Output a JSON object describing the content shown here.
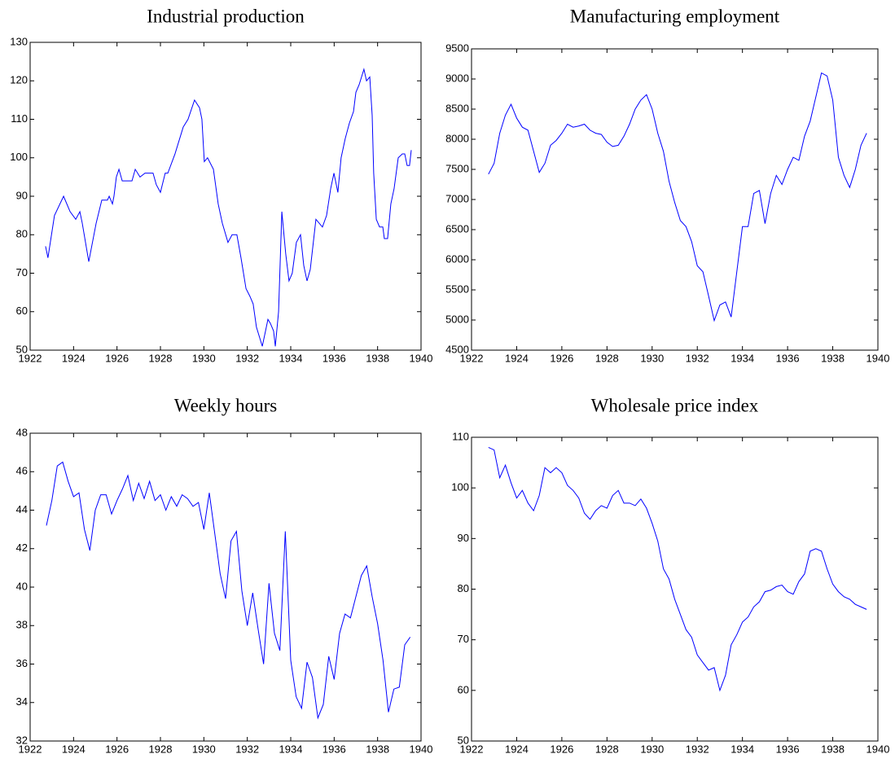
{
  "chart_data": [
    {
      "type": "line",
      "title": "Industrial production",
      "x": [
        1922.71,
        1922.82,
        1923.12,
        1923.54,
        1923.84,
        1924.1,
        1924.29,
        1924.4,
        1924.7,
        1925.04,
        1925.3,
        1925.56,
        1925.64,
        1925.79,
        1925.86,
        1925.97,
        1926.09,
        1926.24,
        1926.69,
        1926.84,
        1927.06,
        1927.29,
        1927.66,
        1927.81,
        1928.0,
        1928.22,
        1928.34,
        1928.67,
        1929.05,
        1929.27,
        1929.57,
        1929.8,
        1929.91,
        1930.02,
        1930.17,
        1930.44,
        1930.66,
        1930.85,
        1931.11,
        1931.3,
        1931.52,
        1931.71,
        1931.94,
        1932.12,
        1932.27,
        1932.42,
        1932.69,
        1932.84,
        1932.95,
        1933.06,
        1933.21,
        1933.29,
        1933.44,
        1933.59,
        1933.77,
        1933.92,
        1934.07,
        1934.26,
        1934.45,
        1934.6,
        1934.75,
        1934.9,
        1935.16,
        1935.46,
        1935.65,
        1935.84,
        1935.99,
        1936.17,
        1936.32,
        1936.51,
        1936.7,
        1936.89,
        1937.0,
        1937.15,
        1937.37,
        1937.49,
        1937.64,
        1937.75,
        1937.82,
        1937.94,
        1938.09,
        1938.24,
        1938.31,
        1938.46,
        1938.61,
        1938.76,
        1938.95,
        1939.14,
        1939.25,
        1939.36,
        1939.47,
        1939.55
      ],
      "series": [
        {
          "color": "#0000ff",
          "values": [
            77,
            74,
            85,
            90,
            86,
            84,
            86,
            83,
            73,
            83,
            89,
            89,
            90,
            88,
            90,
            95,
            97,
            94,
            94,
            97,
            95,
            96,
            96,
            93,
            91,
            96,
            96,
            101,
            108,
            110,
            115,
            113,
            110,
            99,
            100,
            97,
            88,
            83,
            78,
            80,
            80,
            74,
            66,
            64,
            62,
            56,
            51,
            55,
            58,
            57,
            55,
            51,
            60,
            86,
            75,
            68,
            70,
            78,
            80,
            72,
            68,
            71,
            84,
            82,
            85,
            92,
            96,
            91,
            100,
            105,
            109,
            112,
            117,
            119,
            123,
            120,
            121,
            111,
            96,
            84,
            82,
            82,
            79,
            79,
            88,
            92,
            100,
            101,
            101,
            98,
            98,
            102
          ]
        }
      ],
      "xlim": [
        1922,
        1940
      ],
      "xticks": [
        1922,
        1924,
        1926,
        1928,
        1930,
        1932,
        1934,
        1936,
        1938,
        1940
      ],
      "ylim": [
        50,
        130
      ],
      "yticks": [
        50,
        60,
        70,
        80,
        90,
        100,
        110,
        120,
        130
      ]
    },
    {
      "type": "line",
      "title": "Manufacturing employment",
      "x": [
        1922.75,
        1923,
        1923.25,
        1923.5,
        1923.75,
        1924,
        1924.25,
        1924.5,
        1924.75,
        1925,
        1925.25,
        1925.5,
        1925.75,
        1926,
        1926.25,
        1926.5,
        1926.75,
        1927,
        1927.25,
        1927.5,
        1927.75,
        1928,
        1928.25,
        1928.5,
        1928.75,
        1929,
        1929.25,
        1929.5,
        1929.75,
        1930,
        1930.25,
        1930.5,
        1930.75,
        1931,
        1931.25,
        1931.5,
        1931.75,
        1932,
        1932.25,
        1932.5,
        1932.75,
        1933,
        1933.25,
        1933.5,
        1933.75,
        1934,
        1934.25,
        1934.5,
        1934.75,
        1935,
        1935.25,
        1935.5,
        1935.75,
        1936,
        1936.25,
        1936.5,
        1936.75,
        1937,
        1937.25,
        1937.5,
        1937.75,
        1938,
        1938.25,
        1938.5,
        1938.75,
        1939,
        1939.25,
        1939.5
      ],
      "series": [
        {
          "color": "#0000ff",
          "values": [
            7420,
            7600,
            8100,
            8400,
            8580,
            8350,
            8200,
            8150,
            7800,
            7450,
            7600,
            7900,
            7980,
            8100,
            8250,
            8200,
            8220,
            8250,
            8150,
            8100,
            8080,
            7950,
            7880,
            7900,
            8050,
            8250,
            8500,
            8650,
            8740,
            8500,
            8100,
            7800,
            7300,
            6950,
            6650,
            6550,
            6300,
            5900,
            5800,
            5400,
            4990,
            5250,
            5300,
            5050,
            5800,
            6550,
            6550,
            7100,
            7150,
            6600,
            7100,
            7400,
            7250,
            7500,
            7700,
            7650,
            8050,
            8300,
            8700,
            9100,
            9050,
            8650,
            7700,
            7400,
            7200,
            7500,
            7900,
            8100
          ]
        }
      ],
      "xlim": [
        1922,
        1940
      ],
      "xticks": [
        1922,
        1924,
        1926,
        1928,
        1930,
        1932,
        1934,
        1936,
        1938,
        1940
      ],
      "ylim": [
        4500,
        9500
      ],
      "yticks": [
        4500,
        5000,
        5500,
        6000,
        6500,
        7000,
        7500,
        8000,
        8500,
        9000,
        9500
      ]
    },
    {
      "type": "line",
      "title": "Weekly hours",
      "x": [
        1922.75,
        1923,
        1923.25,
        1923.5,
        1923.75,
        1924,
        1924.25,
        1924.5,
        1924.75,
        1925,
        1925.25,
        1925.5,
        1925.75,
        1926,
        1926.25,
        1926.5,
        1926.75,
        1927,
        1927.25,
        1927.5,
        1927.75,
        1928,
        1928.25,
        1928.5,
        1928.75,
        1929,
        1929.25,
        1929.5,
        1929.75,
        1930,
        1930.25,
        1930.5,
        1930.75,
        1931,
        1931.25,
        1931.5,
        1931.75,
        1932,
        1932.25,
        1932.5,
        1932.75,
        1933,
        1933.25,
        1933.5,
        1933.75,
        1934,
        1934.25,
        1934.5,
        1934.75,
        1935,
        1935.25,
        1935.5,
        1935.75,
        1936,
        1936.25,
        1936.5,
        1936.75,
        1937,
        1937.25,
        1937.5,
        1937.75,
        1938,
        1938.25,
        1938.5,
        1938.75,
        1939,
        1939.25,
        1939.5
      ],
      "series": [
        {
          "color": "#0000ff",
          "values": [
            43.2,
            44.5,
            46.3,
            46.5,
            45.5,
            44.7,
            44.9,
            43.0,
            41.9,
            44.0,
            44.8,
            44.8,
            43.8,
            44.5,
            45.1,
            45.8,
            44.5,
            45.4,
            44.6,
            45.5,
            44.5,
            44.8,
            44.0,
            44.7,
            44.2,
            44.8,
            44.6,
            44.2,
            44.4,
            43.0,
            44.9,
            42.8,
            40.7,
            39.4,
            42.4,
            42.9,
            39.8,
            38.0,
            39.7,
            37.8,
            36.0,
            40.2,
            37.6,
            36.7,
            42.9,
            36.2,
            34.3,
            33.7,
            36.1,
            35.3,
            33.2,
            33.9,
            36.4,
            35.2,
            37.6,
            38.6,
            38.4,
            39.5,
            40.6,
            41.1,
            39.5,
            38.1,
            36.2,
            33.5,
            34.7,
            34.8,
            37.0,
            37.4
          ]
        }
      ],
      "xlim": [
        1922,
        1940
      ],
      "xticks": [
        1922,
        1924,
        1926,
        1928,
        1930,
        1932,
        1934,
        1936,
        1938,
        1940
      ],
      "ylim": [
        32,
        48
      ],
      "yticks": [
        32,
        34,
        36,
        38,
        40,
        42,
        44,
        46,
        48
      ]
    },
    {
      "type": "line",
      "title": "Wholesale price index",
      "x": [
        1922.75,
        1923,
        1923.25,
        1923.5,
        1923.75,
        1924,
        1924.25,
        1924.5,
        1924.75,
        1925,
        1925.25,
        1925.5,
        1925.75,
        1926,
        1926.25,
        1926.5,
        1926.75,
        1927,
        1927.25,
        1927.5,
        1927.75,
        1928,
        1928.25,
        1928.5,
        1928.75,
        1929,
        1929.25,
        1929.5,
        1929.75,
        1930,
        1930.25,
        1930.5,
        1930.75,
        1931,
        1931.25,
        1931.5,
        1931.75,
        1932,
        1932.25,
        1932.5,
        1932.75,
        1933,
        1933.25,
        1933.5,
        1933.75,
        1934,
        1934.25,
        1934.5,
        1934.75,
        1935,
        1935.25,
        1935.5,
        1935.75,
        1936,
        1936.25,
        1936.5,
        1936.75,
        1937,
        1937.25,
        1937.5,
        1937.75,
        1938,
        1938.25,
        1938.5,
        1938.75,
        1939,
        1939.25,
        1939.5
      ],
      "series": [
        {
          "color": "#0000ff",
          "values": [
            108,
            107.5,
            102,
            104.5,
            101,
            98,
            99.5,
            97,
            95.5,
            98.5,
            104,
            103,
            104,
            103,
            100.5,
            99.5,
            98,
            95,
            93.8,
            95.5,
            96.5,
            96,
            98.5,
            99.5,
            97,
            97,
            96.5,
            97.8,
            96,
            93,
            89.5,
            84,
            82,
            78,
            75,
            72,
            70.5,
            67,
            65.5,
            64,
            64.5,
            60,
            63,
            69,
            71,
            73.5,
            74.5,
            76.5,
            77.5,
            79.5,
            79.8,
            80.5,
            80.8,
            79.5,
            79,
            81.5,
            83,
            87.5,
            88,
            87.5,
            84,
            81,
            79.5,
            78.5,
            78,
            77,
            76.5,
            76
          ]
        }
      ],
      "xlim": [
        1922,
        1940
      ],
      "xticks": [
        1922,
        1924,
        1926,
        1928,
        1930,
        1932,
        1934,
        1936,
        1938,
        1940
      ],
      "ylim": [
        50,
        110
      ],
      "yticks": [
        50,
        60,
        70,
        80,
        90,
        100,
        110
      ]
    }
  ]
}
